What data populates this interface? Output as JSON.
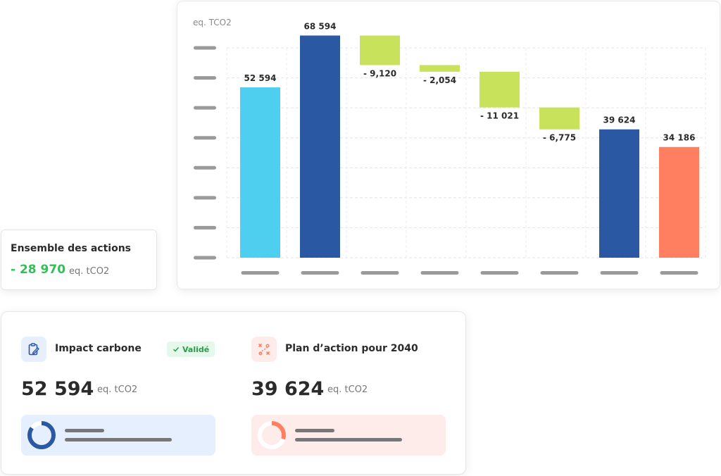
{
  "chart_card": {
    "unit_label": "eq. TCO2"
  },
  "chart_data": {
    "type": "bar",
    "title": "",
    "ylabel": "eq. TCO2",
    "ylim": [
      0,
      70000
    ],
    "grid": true,
    "legend": "none",
    "categories": [
      "",
      "",
      "",
      "",
      "",
      "",
      "",
      ""
    ],
    "bars": [
      {
        "base": 0,
        "top": 52594,
        "label": "52 594",
        "color": "#4ecff0"
      },
      {
        "base": 0,
        "top": 68594,
        "label": "68 594",
        "color": "#2a58a3"
      },
      {
        "base": 59474,
        "top": 68594,
        "label": "- 9,120",
        "color": "#c8e25c"
      },
      {
        "base": 57420,
        "top": 59474,
        "label": "- 2,054",
        "color": "#c8e25c"
      },
      {
        "base": 46399,
        "top": 57420,
        "label": "- 11 021",
        "color": "#c8e25c"
      },
      {
        "base": 39624,
        "top": 46399,
        "label": "- 6,775",
        "color": "#c8e25c"
      },
      {
        "base": 0,
        "top": 39624,
        "label": "39 624",
        "color": "#2a58a3"
      },
      {
        "base": 0,
        "top": 34186,
        "label": "34 186",
        "color": "#ff7f60"
      }
    ]
  },
  "ensemble": {
    "title": "Ensemble des actions",
    "value": "- 28 970",
    "unit": "eq. tCO2"
  },
  "impact": {
    "icon": "clipboard-edit-icon",
    "title": "Impact carbone",
    "badge": "Validé",
    "value": "52 594",
    "unit": "eq. tCO2",
    "progress": 0.85,
    "color": "#2a58a3"
  },
  "plan": {
    "icon": "route-icon",
    "title": "Plan d’action pour 2040",
    "value": "39 624",
    "unit": "eq. tCO2",
    "progress": 0.3,
    "color": "#ff7f60"
  }
}
